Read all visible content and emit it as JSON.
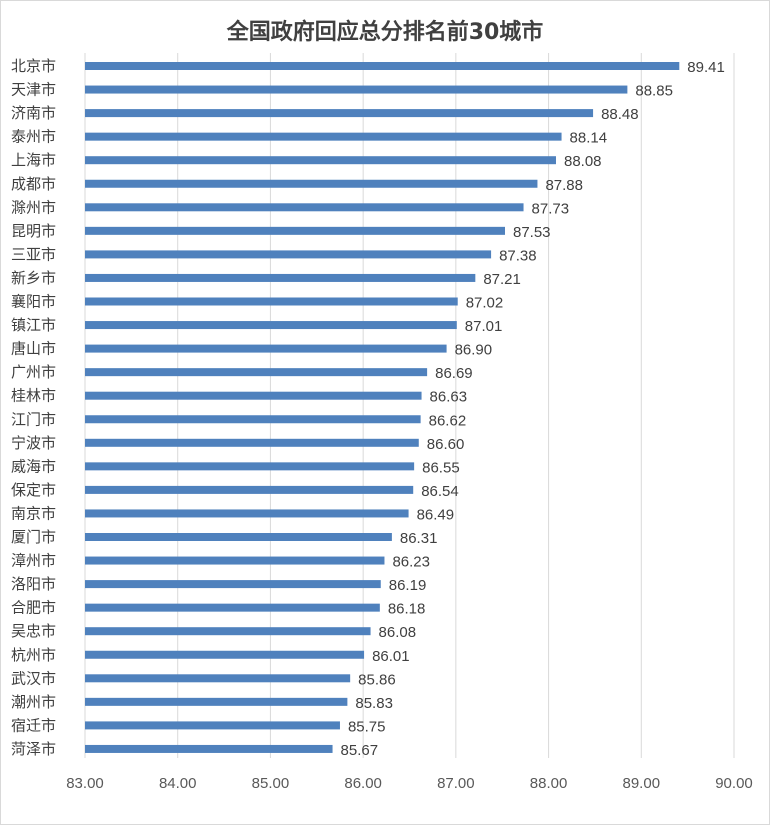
{
  "chart_data": {
    "type": "bar",
    "orientation": "horizontal",
    "title": "全国政府回应总分排名前30城市",
    "categories": [
      "北京市",
      "天津市",
      "济南市",
      "泰州市",
      "上海市",
      "成都市",
      "滁州市",
      "昆明市",
      "三亚市",
      "新乡市",
      "襄阳市",
      "镇江市",
      "唐山市",
      "广州市",
      "桂林市",
      "江门市",
      "宁波市",
      "威海市",
      "保定市",
      "南京市",
      "厦门市",
      "漳州市",
      "洛阳市",
      "合肥市",
      "吴忠市",
      "杭州市",
      "武汉市",
      "潮州市",
      "宿迁市",
      "菏泽市"
    ],
    "values": [
      89.41,
      88.85,
      88.48,
      88.14,
      88.08,
      87.88,
      87.73,
      87.53,
      87.38,
      87.21,
      87.02,
      87.01,
      86.9,
      86.69,
      86.63,
      86.62,
      86.6,
      86.55,
      86.54,
      86.49,
      86.31,
      86.23,
      86.19,
      86.18,
      86.08,
      86.01,
      85.86,
      85.83,
      85.75,
      85.67
    ],
    "value_labels": [
      "89.41",
      "88.85",
      "88.48",
      "88.14",
      "88.08",
      "87.88",
      "87.73",
      "87.53",
      "87.38",
      "87.21",
      "87.02",
      "87.01",
      "86.90",
      "86.69",
      "86.63",
      "86.62",
      "86.60",
      "86.55",
      "86.54",
      "86.49",
      "86.31",
      "86.23",
      "86.19",
      "86.18",
      "86.08",
      "86.01",
      "85.86",
      "85.83",
      "85.75",
      "85.67"
    ],
    "x_ticks": [
      "83.00",
      "84.00",
      "85.00",
      "86.00",
      "87.00",
      "88.00",
      "89.00",
      "90.00"
    ],
    "xlim": [
      83,
      90
    ],
    "xlabel": "",
    "ylabel": "",
    "grid": "vertical",
    "legend": "none",
    "bar_color": "#4f81bd"
  }
}
